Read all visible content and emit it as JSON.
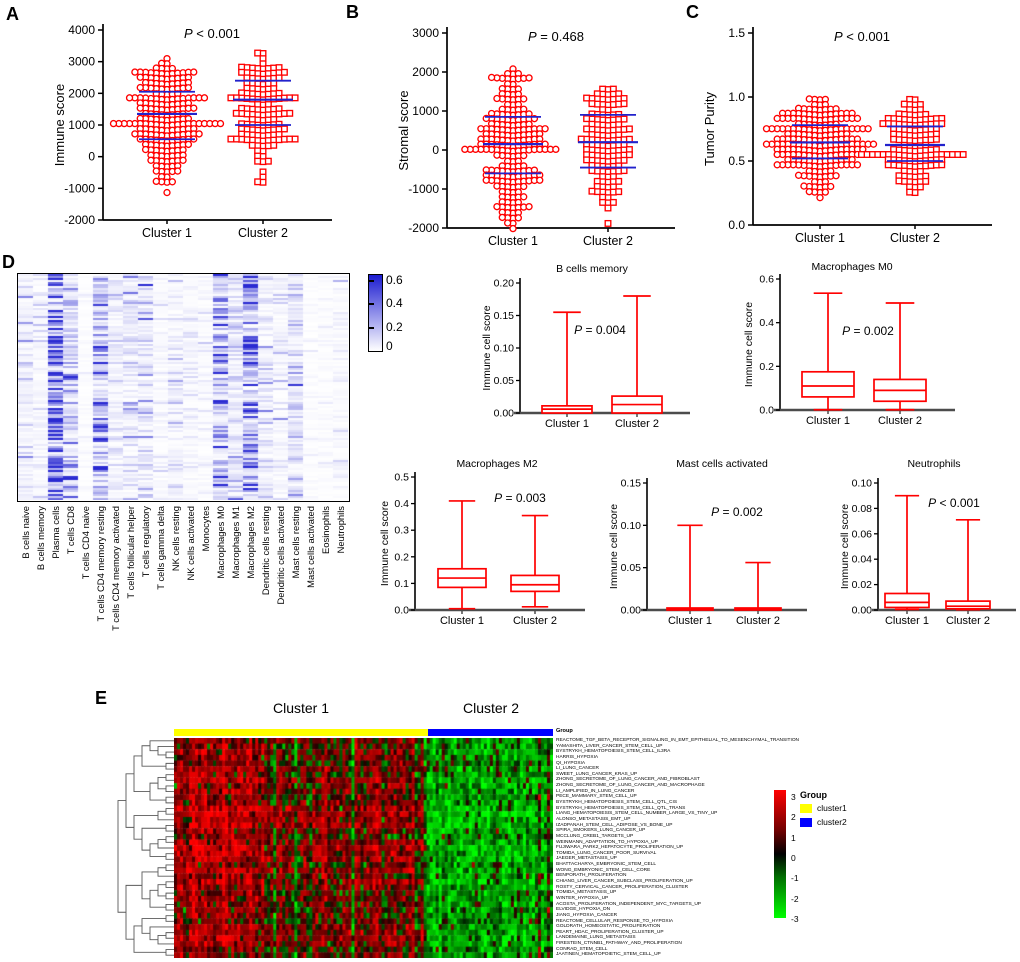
{
  "panels": {
    "A": {
      "label": "A"
    },
    "B": {
      "label": "B"
    },
    "C": {
      "label": "C"
    },
    "D": {
      "label": "D"
    },
    "E": {
      "label": "E",
      "cluster1_header": "Cluster 1",
      "cluster2_header": "Cluster 2",
      "group_row_label": "Group",
      "legend": {
        "title": "Group",
        "items": [
          {
            "label": "cluster1",
            "color": "#FFFF00"
          },
          {
            "label": "cluster2",
            "color": "#0000FF"
          }
        ]
      }
    }
  },
  "colors": {
    "marker_red": "#FF0000",
    "median_blue": "#2222CC",
    "heatmap_blue_max": "#2D2DCD",
    "cluster1_yellow": "#FFFF00",
    "cluster2_blue": "#0000FF",
    "up_red": "#FF0000",
    "down_green": "#00EE00",
    "box_axis_gray": "#4C4C4C"
  },
  "chart_data": [
    {
      "panel": "A",
      "type": "scatter",
      "p_label": "P < 0.001",
      "ylabel": "Immune score",
      "ylim": [
        -2000,
        4000
      ],
      "yticks": [
        "4000",
        "3000",
        "2000",
        "1000",
        "0",
        "-1000",
        "-2000"
      ],
      "categories": [
        "Cluster 1",
        "Cluster 2"
      ],
      "series": [
        {
          "name": "Cluster 1",
          "marker": "circle",
          "n": 210,
          "median": 1350,
          "q1": 550,
          "q3": 2050,
          "min": -1000,
          "max": 3100
        },
        {
          "name": "Cluster 2",
          "marker": "square",
          "n": 140,
          "median": 1800,
          "q1": 1000,
          "q3": 2400,
          "min": -750,
          "max": 3300
        }
      ]
    },
    {
      "panel": "B",
      "type": "scatter",
      "p_label": "P = 0.468",
      "ylabel": "Stromal score",
      "ylim": [
        -2000,
        3000
      ],
      "yticks": [
        "3000",
        "2000",
        "1000",
        "0",
        "-1000",
        "-2000"
      ],
      "categories": [
        "Cluster 1",
        "Cluster 2"
      ],
      "series": [
        {
          "name": "Cluster 1",
          "marker": "circle",
          "n": 210,
          "median": 150,
          "q1": -600,
          "q3": 850,
          "min": -1900,
          "max": 2100
        },
        {
          "name": "Cluster 2",
          "marker": "square",
          "n": 140,
          "median": 200,
          "q1": -450,
          "q3": 900,
          "min": -1800,
          "max": 1600
        }
      ]
    },
    {
      "panel": "C",
      "type": "scatter",
      "p_label": "P < 0.001",
      "ylabel": "Tumor Purity",
      "ylim": [
        0,
        1.5
      ],
      "yticks": [
        "1.5",
        "1.0",
        "0.5",
        "0.0"
      ],
      "categories": [
        "Cluster 1",
        "Cluster 2"
      ],
      "series": [
        {
          "name": "Cluster 1",
          "marker": "circle",
          "n": 210,
          "median": 0.645,
          "q1": 0.52,
          "q3": 0.78,
          "min": 0.24,
          "max": 1.0
        },
        {
          "name": "Cluster 2",
          "marker": "square",
          "n": 140,
          "median": 0.625,
          "q1": 0.5,
          "q3": 0.77,
          "min": 0.27,
          "max": 0.99
        }
      ]
    },
    {
      "panel": "D",
      "type": "heatmap",
      "colormap": "white-to-blue",
      "colorbar_ticks": [
        "0.6",
        "0.4",
        "0.2",
        "0"
      ],
      "vmax": 0.65,
      "columns": [
        "B cells naive",
        "B cells memory",
        "Plasma cells",
        "T cells CD8",
        "T cells CD4 naive",
        "T cells CD4 memory resting",
        "T cells CD4 memory activated",
        "T cells follicular helper",
        "T cells regulatory",
        "T cells gamma delta",
        "NK cells resting",
        "NK cells activated",
        "Monocytes",
        "Macrophages M0",
        "Macrophages M1",
        "Macrophages M2",
        "Dendritic cells resting",
        "Dendritic cells activated",
        "Mast cells resting",
        "Mast cells activated",
        "Eosinophils",
        "Neutrophils"
      ],
      "column_mean_scores": [
        0.05,
        0.03,
        0.42,
        0.14,
        0.01,
        0.18,
        0.05,
        0.07,
        0.06,
        0.02,
        0.04,
        0.03,
        0.02,
        0.22,
        0.09,
        0.24,
        0.06,
        0.03,
        0.09,
        0.01,
        0.012,
        0.02
      ]
    },
    {
      "panel": "D-box-1",
      "type": "box",
      "title": "B cells memory",
      "p_label": "P = 0.004",
      "ylabel": "Immune cell score",
      "ylim": [
        0,
        0.2
      ],
      "yticks": [
        "0.20",
        "0.15",
        "0.10",
        "0.05",
        "0.00"
      ],
      "categories": [
        "Cluster 1",
        "Cluster 2"
      ],
      "series": [
        {
          "name": "Cluster 1",
          "min": 0,
          "q1": 0,
          "median": 0.006,
          "q3": 0.011,
          "max": 0.155
        },
        {
          "name": "Cluster 2",
          "min": 0,
          "q1": 0,
          "median": 0.013,
          "q3": 0.026,
          "max": 0.18
        }
      ]
    },
    {
      "panel": "D-box-2",
      "type": "box",
      "title": "Macrophages M0",
      "p_label": "P = 0.002",
      "ylabel": "Immune cell score",
      "ylim": [
        0,
        0.6
      ],
      "yticks": [
        "0.6",
        "0.4",
        "0.2",
        "0.0"
      ],
      "categories": [
        "Cluster 1",
        "Cluster 2"
      ],
      "series": [
        {
          "name": "Cluster 1",
          "min": 0.001,
          "q1": 0.06,
          "median": 0.11,
          "q3": 0.175,
          "max": 0.535
        },
        {
          "name": "Cluster 2",
          "min": 0.001,
          "q1": 0.04,
          "median": 0.09,
          "q3": 0.14,
          "max": 0.49
        }
      ]
    },
    {
      "panel": "D-box-3",
      "type": "box",
      "title": "Macrophages M2",
      "p_label": "P = 0.003",
      "ylabel": "Immune cell score",
      "ylim": [
        0,
        0.5
      ],
      "yticks": [
        "0.5",
        "0.4",
        "0.3",
        "0.2",
        "0.1",
        "0.0"
      ],
      "categories": [
        "Cluster 1",
        "Cluster 2"
      ],
      "series": [
        {
          "name": "Cluster 1",
          "min": 0.005,
          "q1": 0.085,
          "median": 0.12,
          "q3": 0.155,
          "max": 0.41
        },
        {
          "name": "Cluster 2",
          "min": 0.012,
          "q1": 0.07,
          "median": 0.095,
          "q3": 0.13,
          "max": 0.355
        }
      ]
    },
    {
      "panel": "D-box-4",
      "type": "box",
      "title": "Mast cells activated",
      "p_label": "P = 0.002",
      "ylabel": "Immune cell score",
      "ylim": [
        0,
        0.15
      ],
      "yticks": [
        "0.15",
        "0.10",
        "0.05",
        "0.00"
      ],
      "categories": [
        "Cluster 1",
        "Cluster 2"
      ],
      "series": [
        {
          "name": "Cluster 1",
          "min": 0,
          "q1": 0,
          "median": 0.001,
          "q3": 0.002,
          "max": 0.1
        },
        {
          "name": "Cluster 2",
          "min": 0,
          "q1": 0,
          "median": 0.001,
          "q3": 0.002,
          "max": 0.056
        }
      ]
    },
    {
      "panel": "D-box-5",
      "type": "box",
      "title": "Neutrophils",
      "p_label": "P < 0.001",
      "ylabel": "Immune cell score",
      "ylim": [
        0,
        0.1
      ],
      "yticks": [
        "0.10",
        "0.08",
        "0.06",
        "0.04",
        "0.02",
        "0.00"
      ],
      "categories": [
        "Cluster 1",
        "Cluster 2"
      ],
      "series": [
        {
          "name": "Cluster 1",
          "min": 0.0005,
          "q1": 0.002,
          "median": 0.006,
          "q3": 0.013,
          "max": 0.09
        },
        {
          "name": "Cluster 2",
          "min": 0.0003,
          "q1": 0.001,
          "median": 0.003,
          "q3": 0.007,
          "max": 0.071
        }
      ]
    },
    {
      "panel": "E",
      "type": "heatmap",
      "colormap": "green-black-red",
      "colorbar_ticks": [
        "3",
        "2",
        "1",
        "0",
        "-1",
        "-2",
        "-3"
      ],
      "value_range": [
        -3,
        3
      ],
      "col_groups": [
        {
          "name": "Cluster 1",
          "color": "#FFFF00",
          "n_cols": 84
        },
        {
          "name": "Cluster 2",
          "color": "#0000FF",
          "n_cols": 42
        }
      ],
      "rows": [
        "REACTOME_TGF_BETA_RECEPTOR_SIGNALING_IN_EMT_EPITHELIAL_TO_MESENCHYMAL_TRANSITION",
        "YAMASHITA_LIVER_CANCER_STEM_CELL_UP",
        "BYSTRYKH_HEMATOPOIESIS_STEM_CELL_IL3RA",
        "HARRIS_HYPOXIA",
        "QI_HYPOXIA",
        "LI_LUNG_CANCER",
        "SWEET_LUNG_CANCER_KRAS_UP",
        "ZHONG_SECRETOME_OF_LUNG_CANCER_AND_FIBROBLAST",
        "ZHONG_SECRETOME_OF_LUNG_CANCER_AND_MACROPHAGE",
        "LI_AMPLIFIED_IN_LUNG_CANCER",
        "PECE_MAMMARY_STEM_CELL_UP",
        "BYSTRYKH_HEMATOPOIESIS_STEM_CELL_QTL_CIS",
        "BYSTRYKH_HEMATOPOIESIS_STEM_CELL_QTL_TRANS",
        "LIANG_HEMATOPOIESIS_STEM_CELL_NUMBER_LARGE_VS_TINY_UP",
        "ALONSO_METASTASIS_EMT_UP",
        "IZADPANAH_STEM_CELL_ADIPOSE_VS_BONE_UP",
        "SPIRA_SMOKERS_LUNG_CANCER_UP",
        "MCCLUNG_CREB1_TARGETS_UP",
        "WEINMANN_ADAPTATION_TO_HYPOXIA_UP",
        "FUJIWARA_PARK2_HEPATOCYTE_PROLIFERATION_UP",
        "TOMIDA_LUNG_CANCER_POOR_SURVIVAL",
        "JAEGER_METASTASIS_UP",
        "BHATTACHARYA_EMBRYONIC_STEM_CELL",
        "WONG_EMBRYONIC_STEM_CELL_CORE",
        "BENPORATH_PROLIFERATION",
        "CHIANG_LIVER_CANCER_SUBCLASS_PROLIFERATION_UP",
        "ROSTY_CERVICAL_CANCER_PROLIFERATION_CLUSTER",
        "TOMIDA_METASTASIS_UP",
        "WINTER_HYPOXIA_UP",
        "ACOSTA_PROLIFERATION_INDEPENDENT_MYC_TARGETS_UP",
        "ELVIDGE_HYPOXIA_DN",
        "JIANG_HYPOXIA_CANCER",
        "REACTOME_CELLULAR_RESPONSE_TO_HYPOXIA",
        "GOLDRATH_HOMEOSTATIC_PROLIFERATION",
        "PEART_HDAC_PROLIFERATION_CLUSTER_UP",
        "LANDEMAINE_LUNG_METASTASIS",
        "FIRESTEIN_CTNNB1_PATHWAY_AND_PROLIFERATION",
        "CONRAD_STEM_CELL",
        "JAATINEN_HEMATOPOIETIC_STEM_CELL_UP"
      ]
    }
  ]
}
